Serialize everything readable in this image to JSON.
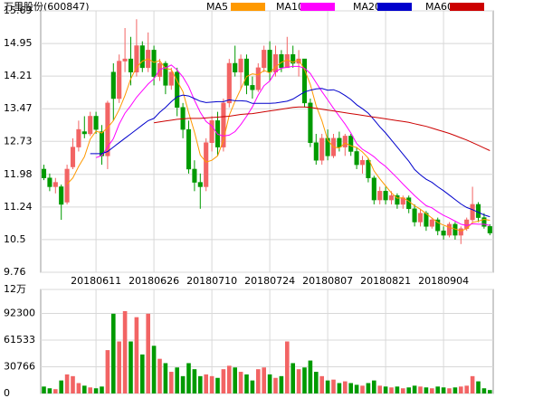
{
  "chart_data": {
    "type": "candlestick",
    "title": "万里股份(600847)",
    "categories": [
      null,
      null,
      null,
      null,
      null,
      null,
      null,
      null,
      null,
      "20180611",
      null,
      null,
      null,
      null,
      null,
      null,
      null,
      null,
      null,
      "20180626",
      null,
      null,
      null,
      null,
      null,
      null,
      null,
      null,
      null,
      "20180710",
      null,
      null,
      null,
      null,
      null,
      null,
      null,
      null,
      null,
      "20180724",
      null,
      null,
      null,
      null,
      null,
      null,
      null,
      null,
      null,
      "20180807",
      null,
      null,
      null,
      null,
      null,
      null,
      null,
      null,
      null,
      "20180821",
      null,
      null,
      null,
      null,
      null,
      null,
      null,
      null,
      null,
      "20180904",
      null,
      null,
      null,
      null,
      null,
      null,
      null,
      null
    ],
    "open": [
      12.1,
      11.9,
      11.7,
      11.7,
      11.35,
      12.15,
      12.6,
      12.95,
      12.9,
      13.3,
      12.95,
      12.4,
      14.3,
      13.7,
      14.55,
      14.6,
      14.3,
      14.9,
      14.4,
      14.8,
      14.2,
      14.5,
      14.0,
      14.3,
      13.5,
      13.0,
      12.1,
      11.8,
      11.7,
      12.7,
      13.2,
      12.6,
      13.6,
      14.5,
      14.3,
      14.6,
      14.0,
      13.9,
      14.4,
      14.8,
      14.3,
      14.7,
      14.4,
      14.7,
      14.5,
      14.6,
      13.6,
      12.7,
      12.3,
      12.8,
      12.4,
      12.8,
      12.6,
      12.85,
      12.5,
      12.2,
      12.3,
      11.9,
      11.4,
      11.6,
      11.4,
      11.5,
      11.3,
      11.45,
      11.2,
      10.9,
      11.1,
      10.8,
      10.95,
      10.7,
      10.6,
      10.85,
      10.6,
      10.75,
      10.95,
      11.3,
      11.0,
      10.8
    ],
    "high": [
      12.2,
      12.0,
      11.9,
      11.75,
      12.2,
      12.8,
      13.2,
      13.3,
      13.4,
      13.4,
      13.1,
      13.65,
      14.5,
      14.7,
      15.3,
      15.1,
      15.5,
      15.0,
      15.2,
      14.9,
      14.6,
      14.55,
      14.4,
      14.4,
      13.6,
      13.2,
      12.3,
      12.0,
      12.8,
      13.3,
      13.4,
      13.7,
      14.6,
      14.9,
      14.7,
      14.7,
      14.2,
      14.5,
      14.9,
      15.0,
      14.9,
      14.8,
      15.1,
      14.9,
      14.8,
      14.6,
      13.7,
      12.9,
      12.9,
      13.0,
      12.9,
      12.95,
      12.9,
      12.9,
      12.6,
      12.4,
      12.35,
      11.95,
      11.7,
      11.7,
      11.6,
      11.55,
      11.5,
      11.5,
      11.3,
      11.2,
      11.15,
      11.0,
      11.0,
      10.8,
      10.9,
      10.9,
      10.8,
      11.0,
      11.7,
      11.35,
      11.1,
      10.85
    ],
    "low": [
      11.85,
      11.6,
      11.55,
      10.95,
      11.3,
      12.1,
      12.5,
      12.8,
      12.85,
      12.9,
      12.2,
      12.1,
      13.2,
      13.6,
      14.3,
      14.0,
      14.2,
      14.3,
      14.3,
      14.0,
      14.1,
      13.8,
      13.9,
      13.3,
      12.8,
      12.0,
      11.6,
      11.2,
      11.6,
      12.5,
      12.4,
      12.5,
      13.5,
      14.2,
      13.9,
      13.8,
      13.7,
      13.85,
      14.3,
      14.1,
      14.2,
      14.3,
      14.4,
      14.4,
      14.2,
      13.5,
      12.6,
      12.2,
      12.2,
      12.3,
      12.35,
      12.5,
      12.4,
      12.4,
      12.1,
      12.0,
      11.8,
      11.3,
      11.3,
      11.3,
      11.3,
      11.2,
      11.2,
      11.1,
      10.8,
      10.8,
      10.7,
      10.75,
      10.6,
      10.5,
      10.55,
      10.5,
      10.4,
      10.7,
      10.9,
      10.9,
      10.75,
      10.6
    ],
    "close": [
      11.9,
      11.7,
      11.8,
      11.3,
      12.1,
      12.6,
      13.0,
      12.9,
      13.3,
      13.0,
      12.4,
      13.6,
      13.7,
      14.55,
      14.6,
      14.3,
      14.9,
      14.4,
      14.8,
      14.2,
      14.5,
      14.0,
      14.3,
      13.5,
      13.0,
      12.1,
      11.8,
      11.7,
      12.7,
      13.2,
      12.6,
      13.6,
      14.5,
      14.3,
      14.6,
      14.0,
      13.9,
      14.4,
      14.8,
      14.3,
      14.7,
      14.4,
      14.7,
      14.5,
      14.6,
      13.6,
      12.7,
      12.3,
      12.8,
      12.4,
      12.8,
      12.6,
      12.85,
      12.5,
      12.2,
      12.3,
      11.9,
      11.4,
      11.6,
      11.4,
      11.5,
      11.3,
      11.45,
      11.2,
      10.9,
      11.1,
      10.8,
      10.95,
      10.7,
      10.6,
      10.85,
      10.6,
      10.75,
      10.95,
      11.3,
      11.0,
      10.8,
      10.65
    ],
    "volume": [
      8000,
      6000,
      5000,
      15000,
      22000,
      20000,
      12000,
      9000,
      7000,
      6000,
      8000,
      50000,
      92000,
      60000,
      95000,
      60000,
      88000,
      45000,
      92000,
      55000,
      40000,
      35000,
      25000,
      30000,
      20000,
      35000,
      28000,
      20000,
      22000,
      20000,
      18000,
      28000,
      32000,
      30000,
      25000,
      22000,
      15000,
      28000,
      30000,
      22000,
      18000,
      20000,
      60000,
      35000,
      28000,
      30000,
      38000,
      25000,
      20000,
      15000,
      16000,
      12000,
      14000,
      12000,
      10000,
      9000,
      12000,
      15000,
      9000,
      8000,
      7000,
      8000,
      6000,
      7000,
      9000,
      8000,
      7000,
      6000,
      8000,
      7000,
      6000,
      7000,
      8000,
      9000,
      20000,
      14000,
      6000,
      4000
    ],
    "up_color": "#f26464",
    "down_color": "#009a00",
    "ylim": [
      9.76,
      15.69
    ],
    "yticks": [
      9.76,
      10.5,
      11.24,
      11.98,
      12.73,
      13.47,
      14.21,
      14.95,
      15.69
    ],
    "volume_ylim": [
      0,
      120000
    ],
    "volume_yticks": [
      0,
      30766,
      61533,
      92300,
      {
        "value": 120000,
        "label": "12万"
      }
    ],
    "grid": true,
    "series": [
      {
        "name": "MA5",
        "color": "#ff9900",
        "values": [
          null,
          null,
          null,
          null,
          11.76,
          11.9,
          12.16,
          12.38,
          12.78,
          12.96,
          12.92,
          13.04,
          13.2,
          13.45,
          13.77,
          14.15,
          14.41,
          14.55,
          14.6,
          14.52,
          14.56,
          14.38,
          14.36,
          14.1,
          13.86,
          13.38,
          12.94,
          12.42,
          12.26,
          12.3,
          12.4,
          12.76,
          13.32,
          13.64,
          13.92,
          14.2,
          14.26,
          14.24,
          14.34,
          14.28,
          14.42,
          14.52,
          14.58,
          14.52,
          14.58,
          14.36,
          14.02,
          13.54,
          13.2,
          12.76,
          12.6,
          12.58,
          12.69,
          12.63,
          12.59,
          12.49,
          12.35,
          12.06,
          11.88,
          11.72,
          11.56,
          11.44,
          11.45,
          11.37,
          11.27,
          11.19,
          11.09,
          10.99,
          10.89,
          10.83,
          10.78,
          10.74,
          10.7,
          10.75,
          10.89,
          10.92,
          10.96,
          10.94
        ]
      },
      {
        "name": "MA10",
        "color": "#ff00ff",
        "values": [
          null,
          null,
          null,
          null,
          null,
          null,
          null,
          null,
          null,
          12.36,
          12.41,
          12.6,
          12.79,
          13.12,
          13.37,
          13.54,
          13.73,
          13.88,
          14.03,
          14.15,
          14.36,
          14.4,
          14.46,
          14.35,
          14.19,
          13.97,
          13.66,
          13.39,
          13.18,
          13.08,
          12.89,
          12.85,
          12.87,
          12.95,
          13.11,
          13.3,
          13.51,
          13.78,
          13.99,
          14.1,
          14.31,
          14.39,
          14.41,
          14.43,
          14.43,
          14.39,
          14.27,
          14.06,
          13.86,
          13.67,
          13.48,
          13.3,
          13.12,
          12.92,
          12.68,
          12.55,
          12.47,
          12.38,
          12.26,
          12.16,
          12.03,
          11.9,
          11.76,
          11.63,
          11.5,
          11.38,
          11.27,
          11.22,
          11.13,
          11.05,
          10.99,
          10.92,
          10.85,
          10.82,
          10.86,
          10.85,
          10.85,
          10.82
        ]
      },
      {
        "name": "MA20",
        "color": "#0000cc",
        "values": [
          null,
          null,
          null,
          null,
          null,
          null,
          null,
          null,
          12.45,
          12.45,
          12.45,
          12.5,
          12.6,
          12.7,
          12.8,
          12.9,
          13.0,
          13.1,
          13.2,
          13.25,
          13.39,
          13.5,
          13.63,
          13.74,
          13.78,
          13.76,
          13.7,
          13.64,
          13.61,
          13.62,
          13.63,
          13.63,
          13.67,
          13.65,
          13.65,
          13.64,
          13.59,
          13.59,
          13.59,
          13.59,
          13.6,
          13.62,
          13.64,
          13.69,
          13.77,
          13.85,
          13.89,
          13.92,
          13.93,
          13.89,
          13.9,
          13.85,
          13.77,
          13.68,
          13.56,
          13.47,
          13.37,
          13.22,
          13.06,
          12.92,
          12.76,
          12.6,
          12.44,
          12.28,
          12.09,
          11.97,
          11.87,
          11.8,
          11.7,
          11.61,
          11.51,
          11.41,
          11.31,
          11.23,
          11.18,
          11.12,
          11.06,
          11.02
        ]
      },
      {
        "name": "MA60",
        "color": "#cc0000",
        "values": [
          null,
          null,
          null,
          null,
          null,
          null,
          null,
          null,
          null,
          null,
          null,
          null,
          null,
          null,
          null,
          null,
          null,
          null,
          null,
          13.15,
          13.17,
          13.19,
          13.21,
          13.23,
          13.24,
          13.25,
          13.25,
          13.25,
          13.26,
          13.27,
          13.28,
          13.29,
          13.3,
          13.32,
          13.34,
          13.35,
          13.36,
          13.38,
          13.4,
          13.42,
          13.44,
          13.46,
          13.48,
          13.5,
          13.51,
          13.51,
          13.5,
          13.48,
          13.46,
          13.44,
          13.42,
          13.4,
          13.38,
          13.36,
          13.34,
          13.32,
          13.3,
          13.28,
          13.26,
          13.24,
          13.22,
          13.2,
          13.18,
          13.16,
          13.13,
          13.1,
          13.07,
          13.03,
          12.99,
          12.95,
          12.91,
          12.86,
          12.81,
          12.76,
          12.7,
          12.64,
          12.58,
          12.52
        ]
      }
    ]
  }
}
